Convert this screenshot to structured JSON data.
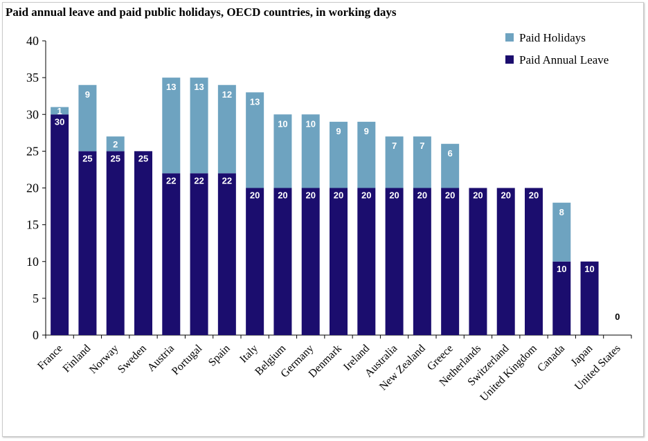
{
  "chart_data": {
    "type": "bar",
    "stacked": true,
    "title": "Paid annual leave and paid public holidays, OECD countries, in working days",
    "xlabel": "",
    "ylabel": "",
    "ylim": [
      0,
      40
    ],
    "yticks": [
      0,
      5,
      10,
      15,
      20,
      25,
      30,
      35,
      40
    ],
    "grid": false,
    "legend_position": "top-right",
    "categories": [
      "France",
      "Finland",
      "Norway",
      "Sweden",
      "Austria",
      "Portugal",
      "Spain",
      "Italy",
      "Belgium",
      "Germany",
      "Denmark",
      "Ireland",
      "Australia",
      "New Zealand",
      "Greece",
      "Netherlands",
      "Switzerland",
      "United Kingdom",
      "Canada",
      "Japan",
      "United States"
    ],
    "series": [
      {
        "name": "Paid Annual Leave",
        "color": "#1b0d6e",
        "values": [
          30,
          25,
          25,
          25,
          22,
          22,
          22,
          20,
          20,
          20,
          20,
          20,
          20,
          20,
          20,
          20,
          20,
          20,
          10,
          10,
          0
        ]
      },
      {
        "name": "Paid Holidays",
        "color": "#6ea3c0",
        "values": [
          1,
          9,
          2,
          0,
          13,
          13,
          12,
          13,
          10,
          10,
          9,
          9,
          7,
          7,
          6,
          0,
          0,
          0,
          8,
          0,
          0
        ]
      }
    ],
    "zero_label": "0"
  }
}
